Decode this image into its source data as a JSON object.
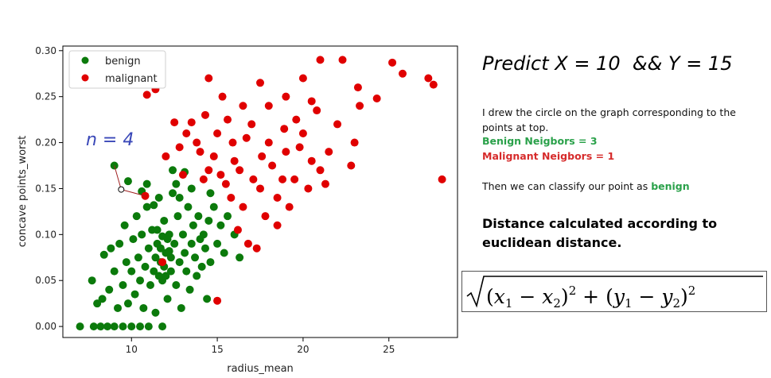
{
  "chart_data": {
    "type": "scatter",
    "title": "",
    "xlabel": "radius_mean",
    "ylabel": "concave points_worst",
    "xlim": [
      6,
      29
    ],
    "ylim": [
      -0.012,
      0.305
    ],
    "xticks": [
      10,
      15,
      20,
      25
    ],
    "yticks": [
      0.0,
      0.05,
      0.1,
      0.15,
      0.2,
      0.25,
      0.3
    ],
    "xtick_labels": [
      "10",
      "15",
      "20",
      "25"
    ],
    "ytick_labels": [
      "0.00",
      "0.05",
      "0.10",
      "0.15",
      "0.20",
      "0.25",
      "0.30"
    ],
    "grid": false,
    "legend_position": "top-left",
    "series": [
      {
        "name": "benign",
        "color": "#0b7a0b",
        "points": [
          [
            7.0,
            0.0
          ],
          [
            7.8,
            0.0
          ],
          [
            8.2,
            0.0
          ],
          [
            8.6,
            0.0
          ],
          [
            9.0,
            0.0
          ],
          [
            9.5,
            0.0
          ],
          [
            10.0,
            0.0
          ],
          [
            10.5,
            0.0
          ],
          [
            11.0,
            0.0
          ],
          [
            11.8,
            0.0
          ],
          [
            7.7,
            0.05
          ],
          [
            8.0,
            0.025
          ],
          [
            8.3,
            0.03
          ],
          [
            8.4,
            0.078
          ],
          [
            8.7,
            0.04
          ],
          [
            8.8,
            0.085
          ],
          [
            9.0,
            0.06
          ],
          [
            9.2,
            0.02
          ],
          [
            9.3,
            0.09
          ],
          [
            9.5,
            0.045
          ],
          [
            9.6,
            0.11
          ],
          [
            9.7,
            0.07
          ],
          [
            9.8,
            0.025
          ],
          [
            10.0,
            0.06
          ],
          [
            10.1,
            0.095
          ],
          [
            10.2,
            0.035
          ],
          [
            10.3,
            0.12
          ],
          [
            10.4,
            0.075
          ],
          [
            10.5,
            0.05
          ],
          [
            10.6,
            0.1
          ],
          [
            10.7,
            0.02
          ],
          [
            10.8,
            0.065
          ],
          [
            10.9,
            0.13
          ],
          [
            11.0,
            0.085
          ],
          [
            11.1,
            0.045
          ],
          [
            11.2,
            0.105
          ],
          [
            11.3,
            0.06
          ],
          [
            11.4,
            0.015
          ],
          [
            11.5,
            0.09
          ],
          [
            11.6,
            0.14
          ],
          [
            11.7,
            0.07
          ],
          [
            11.8,
            0.05
          ],
          [
            11.9,
            0.115
          ],
          [
            12.0,
            0.08
          ],
          [
            12.1,
            0.03
          ],
          [
            12.2,
            0.1
          ],
          [
            12.3,
            0.06
          ],
          [
            12.4,
            0.145
          ],
          [
            12.5,
            0.09
          ],
          [
            12.6,
            0.045
          ],
          [
            12.7,
            0.12
          ],
          [
            12.8,
            0.07
          ],
          [
            12.9,
            0.02
          ],
          [
            13.0,
            0.1
          ],
          [
            13.1,
            0.08
          ],
          [
            13.2,
            0.06
          ],
          [
            13.3,
            0.13
          ],
          [
            13.4,
            0.04
          ],
          [
            13.5,
            0.09
          ],
          [
            13.6,
            0.11
          ],
          [
            13.7,
            0.075
          ],
          [
            13.8,
            0.055
          ],
          [
            13.9,
            0.12
          ],
          [
            14.0,
            0.095
          ],
          [
            14.1,
            0.065
          ],
          [
            14.2,
            0.1
          ],
          [
            14.3,
            0.085
          ],
          [
            14.4,
            0.03
          ],
          [
            14.5,
            0.115
          ],
          [
            14.6,
            0.07
          ],
          [
            14.8,
            0.13
          ],
          [
            15.0,
            0.09
          ],
          [
            15.2,
            0.11
          ],
          [
            15.4,
            0.08
          ],
          [
            15.6,
            0.12
          ],
          [
            16.0,
            0.1
          ],
          [
            16.3,
            0.075
          ],
          [
            9.0,
            0.175
          ],
          [
            9.8,
            0.158
          ],
          [
            10.6,
            0.147
          ],
          [
            11.5,
            0.105
          ],
          [
            11.7,
            0.085
          ],
          [
            11.9,
            0.065
          ],
          [
            12.0,
            0.055
          ],
          [
            12.1,
            0.095
          ],
          [
            12.3,
            0.075
          ],
          [
            11.4,
            0.075
          ],
          [
            11.6,
            0.055
          ],
          [
            11.8,
            0.098
          ],
          [
            12.2,
            0.082
          ],
          [
            12.6,
            0.155
          ],
          [
            13.1,
            0.168
          ],
          [
            13.5,
            0.15
          ],
          [
            14.6,
            0.145
          ],
          [
            12.4,
            0.17
          ],
          [
            10.9,
            0.155
          ],
          [
            11.3,
            0.132
          ],
          [
            12.8,
            0.14
          ]
        ]
      },
      {
        "name": "malignant",
        "color": "#e00000",
        "points": [
          [
            10.8,
            0.142
          ],
          [
            11.8,
            0.07
          ],
          [
            15.0,
            0.028
          ],
          [
            10.9,
            0.252
          ],
          [
            11.4,
            0.258
          ],
          [
            12.5,
            0.222
          ],
          [
            13.5,
            0.222
          ],
          [
            14.5,
            0.27
          ],
          [
            15.3,
            0.25
          ],
          [
            16.5,
            0.24
          ],
          [
            17.5,
            0.265
          ],
          [
            18.0,
            0.24
          ],
          [
            19.0,
            0.25
          ],
          [
            20.0,
            0.27
          ],
          [
            20.5,
            0.245
          ],
          [
            21.0,
            0.29
          ],
          [
            22.3,
            0.29
          ],
          [
            23.2,
            0.26
          ],
          [
            24.3,
            0.248
          ],
          [
            25.2,
            0.287
          ],
          [
            25.8,
            0.275
          ],
          [
            27.3,
            0.27
          ],
          [
            27.6,
            0.263
          ],
          [
            28.1,
            0.16
          ],
          [
            23.0,
            0.2
          ],
          [
            23.3,
            0.24
          ],
          [
            22.0,
            0.22
          ],
          [
            21.5,
            0.19
          ],
          [
            21.0,
            0.17
          ],
          [
            20.5,
            0.18
          ],
          [
            20.0,
            0.21
          ],
          [
            19.5,
            0.16
          ],
          [
            19.0,
            0.19
          ],
          [
            18.5,
            0.14
          ],
          [
            18.0,
            0.2
          ],
          [
            17.5,
            0.15
          ],
          [
            17.0,
            0.22
          ],
          [
            16.5,
            0.13
          ],
          [
            16.0,
            0.18
          ],
          [
            15.5,
            0.155
          ],
          [
            15.0,
            0.21
          ],
          [
            14.5,
            0.17
          ],
          [
            14.0,
            0.19
          ],
          [
            13.8,
            0.2
          ],
          [
            13.2,
            0.21
          ],
          [
            12.8,
            0.195
          ],
          [
            12.0,
            0.185
          ],
          [
            16.8,
            0.09
          ],
          [
            17.3,
            0.085
          ],
          [
            18.5,
            0.11
          ],
          [
            19.2,
            0.13
          ],
          [
            17.8,
            0.12
          ],
          [
            16.2,
            0.105
          ],
          [
            15.8,
            0.14
          ],
          [
            14.8,
            0.185
          ],
          [
            19.6,
            0.225
          ],
          [
            20.8,
            0.235
          ],
          [
            22.8,
            0.175
          ],
          [
            18.2,
            0.175
          ],
          [
            16.7,
            0.205
          ],
          [
            15.6,
            0.225
          ],
          [
            14.3,
            0.23
          ],
          [
            13.0,
            0.165
          ],
          [
            17.1,
            0.16
          ],
          [
            18.8,
            0.16
          ],
          [
            20.3,
            0.15
          ],
          [
            21.3,
            0.155
          ],
          [
            19.8,
            0.195
          ],
          [
            17.6,
            0.185
          ],
          [
            16.3,
            0.17
          ],
          [
            15.2,
            0.165
          ],
          [
            14.2,
            0.16
          ],
          [
            15.9,
            0.2
          ],
          [
            18.9,
            0.215
          ]
        ]
      },
      {
        "name": "",
        "color": "#ffffff",
        "points": [
          [
            9.4,
            0.149
          ]
        ]
      }
    ],
    "annotations": [
      "n = 4"
    ]
  },
  "side": {
    "predict_title": "Predict X = 10  && Y = 15",
    "note": "I drew the circle on the graph corresponding to the points at top.",
    "benign_neighbors": "Benign Neigbors = 3",
    "malignant_neighbors": "Malignant Neigbors = 1",
    "classify_prefix": "Then we can classify our point as ",
    "classify_word": "benign",
    "distance_note": "Distance calculated according to euclidean distance."
  }
}
